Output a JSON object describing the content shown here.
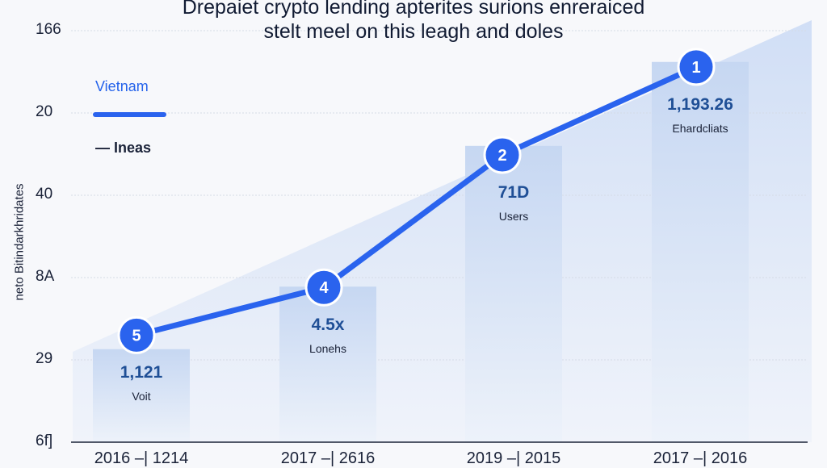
{
  "chart_data": {
    "type": "bar",
    "title": [
      "Drepaiet crypto lending apterites surions enreraiced",
      "stelt meel on this leagh and doles"
    ],
    "ylabel": "neto Bitindarkhridates",
    "xlabel": "",
    "y_tick_labels": [
      "6f]",
      "29",
      "8A",
      "40",
      "20",
      "166"
    ],
    "ylim_tick_index": [
      0,
      5
    ],
    "grid": true,
    "legend_placement": "top-left",
    "legend": [
      {
        "name": "Vietnam",
        "style": "thick-line",
        "color": "#2a63ee"
      },
      {
        "name": "Ineas",
        "style": "thin-line",
        "color": "#1a2238"
      }
    ],
    "categories": [
      "2016 –| 1214",
      "2017 –| 2616",
      "2019 –| 2015",
      "2017 –| 2016"
    ],
    "bars": {
      "values_tick_index": [
        1.13,
        1.89,
        3.6,
        4.62
      ],
      "data_labels": [
        "1,121",
        "4.5x",
        "71D",
        "1,193.26"
      ],
      "sub_labels": [
        "Voit",
        "Lonehs",
        "Users",
        "Ehardcliats"
      ],
      "color": "#c9d9f3"
    },
    "series": [
      {
        "name": "Vietnam",
        "values_tick_index": [
          1.3,
          1.88,
          3.49,
          4.56
        ],
        "markers": [
          "5",
          "4",
          "2",
          "1"
        ],
        "color": "#2a63ee"
      }
    ]
  }
}
